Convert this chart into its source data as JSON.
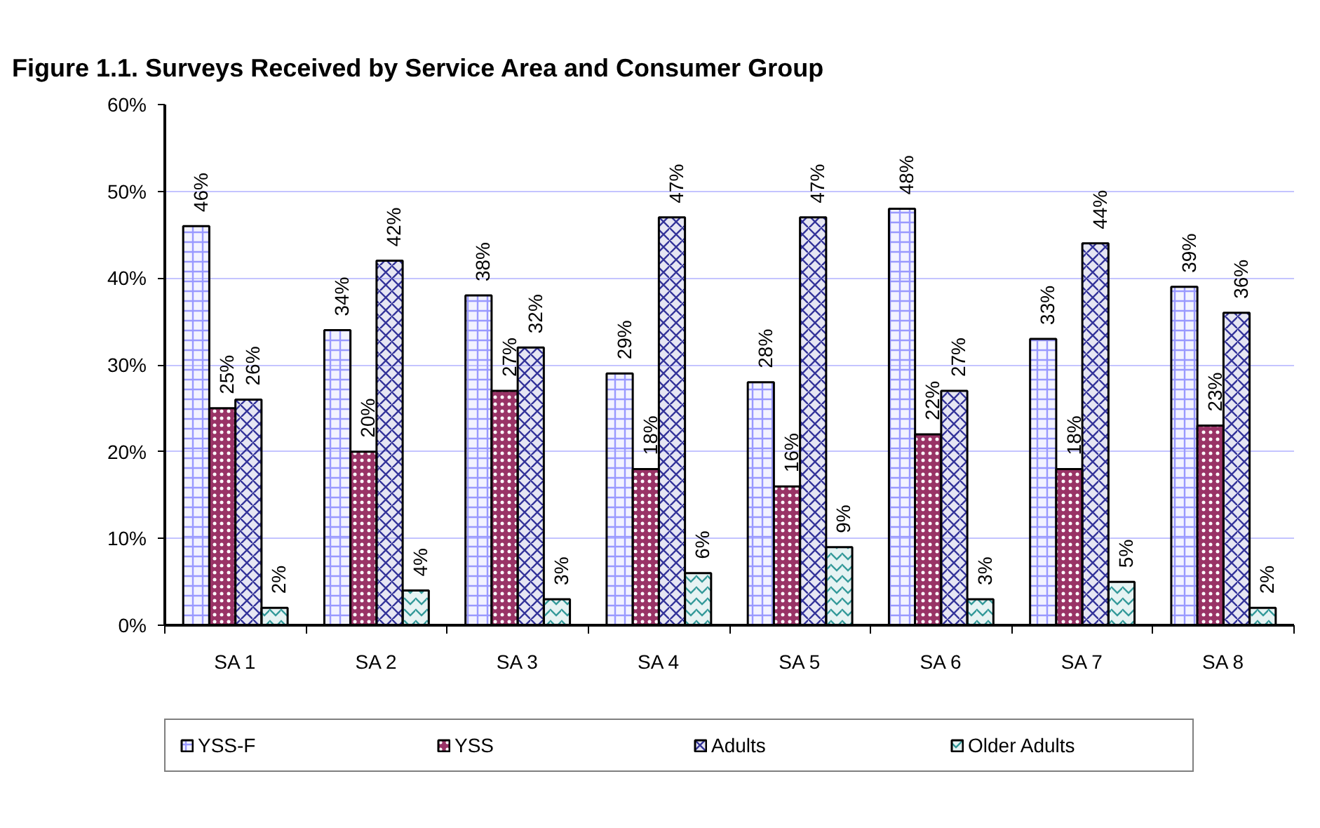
{
  "chart_data": {
    "type": "bar",
    "title": "Figure 1.1.  Surveys Received by Service Area and Consumer Group",
    "categories": [
      "SA 1",
      "SA 2",
      "SA 3",
      "SA 4",
      "SA 5",
      "SA 6",
      "SA 7",
      "SA 8"
    ],
    "series": [
      {
        "name": "YSS-F",
        "color": "#9999ff",
        "values": [
          46,
          34,
          38,
          29,
          28,
          48,
          33,
          39
        ],
        "value_labels": [
          "46%",
          "34%",
          "38%",
          "29%",
          "28%",
          "48%",
          "33%",
          "39%"
        ]
      },
      {
        "name": "YSS",
        "color": "#993366",
        "values": [
          25,
          20,
          27,
          18,
          16,
          22,
          18,
          23
        ],
        "value_labels": [
          "25%",
          "20%",
          "27%",
          "18%",
          "16%",
          "22%",
          "18%",
          "23%"
        ]
      },
      {
        "name": "Adults",
        "color": "#333399",
        "values": [
          26,
          42,
          32,
          47,
          47,
          27,
          44,
          36
        ],
        "value_labels": [
          "26%",
          "42%",
          "32%",
          "47%",
          "47%",
          "27%",
          "44%",
          "36%"
        ]
      },
      {
        "name": "Older Adults",
        "color": "#339999",
        "values": [
          2,
          4,
          3,
          6,
          9,
          3,
          5,
          2
        ],
        "value_labels": [
          "2%",
          "4%",
          "3%",
          "6%",
          "9%",
          "3%",
          "5%",
          "2%"
        ]
      }
    ],
    "ylim": [
      0,
      60
    ],
    "yticks": [
      {
        "value": 0,
        "label": "0%"
      },
      {
        "value": 10,
        "label": "10%"
      },
      {
        "value": 20,
        "label": "20%"
      },
      {
        "value": 30,
        "label": "30%"
      },
      {
        "value": 40,
        "label": "40%"
      },
      {
        "value": 50,
        "label": "50%"
      },
      {
        "value": 60,
        "label": "60%"
      }
    ],
    "grid": "y",
    "legend": "bottom"
  }
}
